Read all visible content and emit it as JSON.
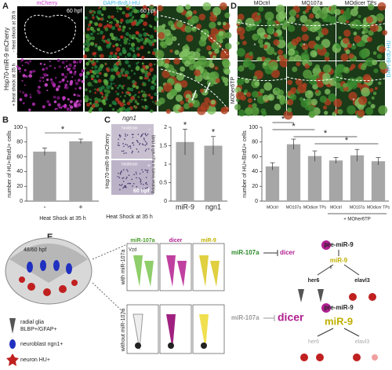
{
  "panel_labels": [
    "A",
    "B",
    "C",
    "D",
    "E"
  ],
  "panel_a": {
    "side_label": "Hsp70-miR-9 mCherry",
    "row_labels": [
      "- heat shock at 35 h",
      "+ heat shock at 35 h"
    ],
    "column_labels": [
      "mCherry",
      "DAPI-BrdU-HU"
    ],
    "stage": "60 hpf",
    "star": "*"
  },
  "panel_c_images": {
    "gene": "ngn1",
    "region": "hindbrain",
    "side_label": "Hsp70-miR-9 mCherry",
    "stage": "60 hpf",
    "signs": [
      "-",
      "+"
    ],
    "x_label": "Heat Shock at 35 h"
  },
  "panel_d_images": {
    "columns": [
      "MOctrl",
      "MO107a",
      "MOdicer TPs"
    ],
    "row_label": "MOher6TP",
    "stain": "DAPI-BrdU-HU",
    "star": "*"
  },
  "chart_data": [
    {
      "type": "bar",
      "y_label": "number of HU+/BrdU+ cells",
      "x_label": "Heat Shock at 35 h",
      "categories": [
        "-",
        "+"
      ],
      "values": [
        67,
        81
      ],
      "errors": [
        5,
        3
      ],
      "ylim": [
        0,
        100
      ],
      "yticks": [
        0,
        20,
        40,
        60,
        80,
        100
      ],
      "color": "#a6a6a6",
      "significance": "*"
    },
    {
      "type": "bar",
      "y_label": "Relative levels in hsp:miR-9 (fold)",
      "categories": [
        "miR-9",
        "ngn1"
      ],
      "values": [
        1.6,
        1.5
      ],
      "errors": [
        0.35,
        0.25
      ],
      "ylim": [
        0,
        2
      ],
      "yticks": [
        0,
        0.5,
        1,
        1.5,
        2
      ],
      "color": "#a6a6a6",
      "significance": "*"
    },
    {
      "type": "bar",
      "y_label": "number of HU+/BrdU+ cells",
      "categories": [
        "MOctrl",
        "MO107a",
        "MOdicer TPs",
        "MOctrl",
        "MO107a",
        "MOdicer TPs"
      ],
      "values": [
        47,
        77,
        61,
        55,
        62,
        54
      ],
      "errors": [
        5,
        7,
        7,
        4,
        8,
        5
      ],
      "ylim": [
        0,
        100
      ],
      "yticks": [
        0,
        20,
        40,
        60,
        80,
        100
      ],
      "color": "#a6a6a6",
      "group_label": "+ MOher6TP",
      "significance": "*"
    }
  ],
  "panel_e": {
    "stage": "48/60 hpf",
    "columns": [
      "miR-107a",
      "dicer",
      "miR-9"
    ],
    "vzd": "Vzd",
    "rows": [
      "with miR-107a",
      "without miR-107a"
    ],
    "pathway": {
      "inhibitor": "miR-107a",
      "target": "dicer",
      "precursor": "pre-miR-9",
      "mature": "miR-9",
      "genes": [
        "her6",
        "elavl3"
      ]
    },
    "legend": [
      "radial glia",
      "BLBP+/GFAP+",
      "neuroblast ngn1+",
      "neuron HU+"
    ]
  }
}
